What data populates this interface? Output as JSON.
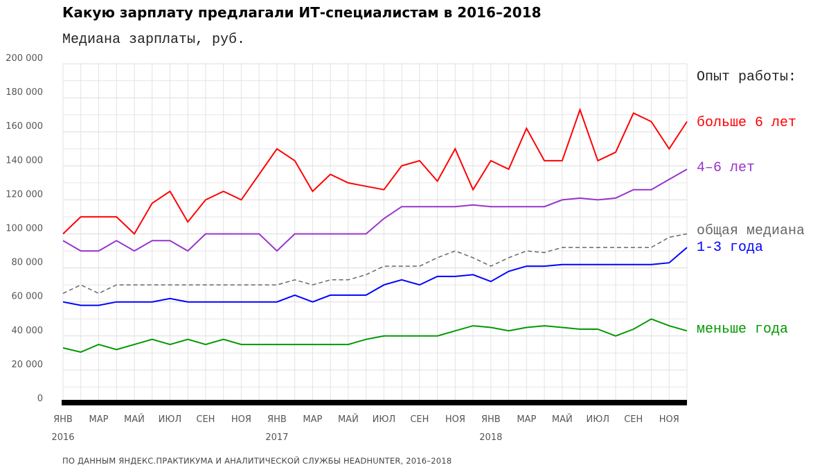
{
  "title": "Какую зарплату предлагали ИТ-специалистам в 2016–2018",
  "subtitle": "Медиана зарплаты, руб.",
  "source": "ПО ДАННЫМ ЯНДЕКС.ПРАКТИКУМА И АНАЛИТИЧЕСКОЙ СЛУЖБЫ HEADHUNTER, 2016–2018",
  "chart_data": {
    "type": "line",
    "title": "Какую зарплату предлагали ИТ-специалистам в 2016–2018",
    "ylabel": "Медиана зарплаты, руб.",
    "ylim": [
      0,
      200000
    ],
    "grid": true,
    "legend_title": "Опыт работы:",
    "legend_placement": "right",
    "y_ticks": [
      "0",
      "20 000",
      "40 000",
      "60 000",
      "80 000",
      "100 000",
      "120 000",
      "140 000",
      "160 000",
      "180 000",
      "200 000"
    ],
    "x_tick_labels": [
      "ЯНВ",
      "МАР",
      "МАЙ",
      "ИЮЛ",
      "СЕН",
      "НОЯ",
      "ЯНВ",
      "МАР",
      "МАЙ",
      "ИЮЛ",
      "СЕН",
      "НОЯ",
      "ЯНВ",
      "МАР",
      "МАЙ",
      "ИЮЛ",
      "СЕН",
      "НОЯ"
    ],
    "year_labels": [
      "2016",
      "2017",
      "2018"
    ],
    "x": [
      "2016-01",
      "2016-02",
      "2016-03",
      "2016-04",
      "2016-05",
      "2016-06",
      "2016-07",
      "2016-08",
      "2016-09",
      "2016-10",
      "2016-11",
      "2016-12",
      "2017-01",
      "2017-02",
      "2017-03",
      "2017-04",
      "2017-05",
      "2017-06",
      "2017-07",
      "2017-08",
      "2017-09",
      "2017-10",
      "2017-11",
      "2017-12",
      "2018-01",
      "2018-02",
      "2018-03",
      "2018-04",
      "2018-05",
      "2018-06",
      "2018-07",
      "2018-08",
      "2018-09",
      "2018-10",
      "2018-11",
      "2018-12"
    ],
    "series": [
      {
        "name": "больше 6 лет",
        "color": "#ff0000",
        "dashed": false,
        "values": [
          100000,
          110000,
          110000,
          110000,
          100000,
          118000,
          125000,
          107000,
          120000,
          125000,
          120000,
          135000,
          150000,
          143000,
          125000,
          135000,
          130000,
          128000,
          126000,
          140000,
          143000,
          131000,
          150000,
          126000,
          143000,
          138000,
          162000,
          143000,
          143000,
          173000,
          143000,
          148000,
          171000,
          166000,
          150000,
          166000
        ]
      },
      {
        "name": "4–6 лет",
        "color": "#9933cc",
        "dashed": false,
        "values": [
          96000,
          90000,
          90000,
          96000,
          90000,
          96000,
          96000,
          90000,
          100000,
          100000,
          100000,
          100000,
          90000,
          100000,
          100000,
          100000,
          100000,
          100000,
          109000,
          116000,
          116000,
          116000,
          116000,
          117000,
          116000,
          116000,
          116000,
          116000,
          120000,
          121000,
          120000,
          121000,
          126000,
          126000,
          132000,
          138000
        ]
      },
      {
        "name": "общая медиана",
        "color": "#666666",
        "dashed": true,
        "values": [
          65000,
          70000,
          65000,
          70000,
          70000,
          70000,
          70000,
          70000,
          70000,
          70000,
          70000,
          70000,
          70000,
          73000,
          70000,
          73000,
          73000,
          76000,
          81000,
          81000,
          81000,
          86000,
          90000,
          86000,
          81000,
          86000,
          90000,
          89000,
          92000,
          92000,
          92000,
          92000,
          92000,
          92000,
          98000,
          100000
        ]
      },
      {
        "name": "1-3 года",
        "color": "#0000ff",
        "dashed": false,
        "values": [
          60000,
          58000,
          58000,
          60000,
          60000,
          60000,
          62000,
          60000,
          60000,
          60000,
          60000,
          60000,
          60000,
          64000,
          60000,
          64000,
          64000,
          64000,
          70000,
          73000,
          70000,
          75000,
          75000,
          76000,
          72000,
          78000,
          81000,
          81000,
          82000,
          82000,
          82000,
          82000,
          82000,
          82000,
          83000,
          92000
        ]
      },
      {
        "name": "меньше года",
        "color": "#009900",
        "dashed": false,
        "values": [
          33000,
          30500,
          35000,
          32000,
          35000,
          38000,
          35000,
          38000,
          35000,
          38000,
          35000,
          35000,
          35000,
          35000,
          35000,
          35000,
          35000,
          38000,
          40000,
          40000,
          40000,
          40000,
          43000,
          46000,
          45000,
          43000,
          45000,
          46000,
          45000,
          44000,
          44000,
          40000,
          44000,
          50000,
          46000,
          43000
        ]
      }
    ]
  }
}
